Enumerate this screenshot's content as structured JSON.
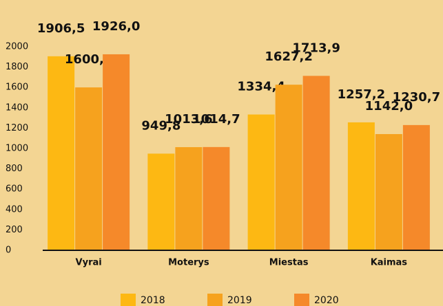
{
  "chart_data": {
    "type": "bar",
    "categories": [
      "Vyrai",
      "Moterys",
      "Miestas",
      "Kaimas"
    ],
    "series": [
      {
        "name": "2018",
        "color": "#fdb813",
        "values": [
          1906.5,
          949.8,
          1334.4,
          1257.2
        ],
        "value_labels": [
          "1906,5",
          "949,8",
          "1334,4",
          "1257,2"
        ]
      },
      {
        "name": "2019",
        "color": "#f6a21e",
        "values": [
          1600.5,
          1013.6,
          1627.2,
          1142.0
        ],
        "value_labels": [
          "1600,5",
          "1013,6",
          "1627,2",
          "1142,0"
        ]
      },
      {
        "name": "2020",
        "color": "#f5892a",
        "values": [
          1926.0,
          1014.7,
          1713.9,
          1230.7
        ],
        "value_labels": [
          "1926,0",
          "1014,7",
          "1713,9",
          "1230,7"
        ]
      }
    ],
    "ylim": [
      0,
      2000
    ],
    "yticks": [
      0,
      200,
      400,
      600,
      800,
      1000,
      1200,
      1400,
      1600,
      1800,
      2000
    ],
    "grid": false
  }
}
